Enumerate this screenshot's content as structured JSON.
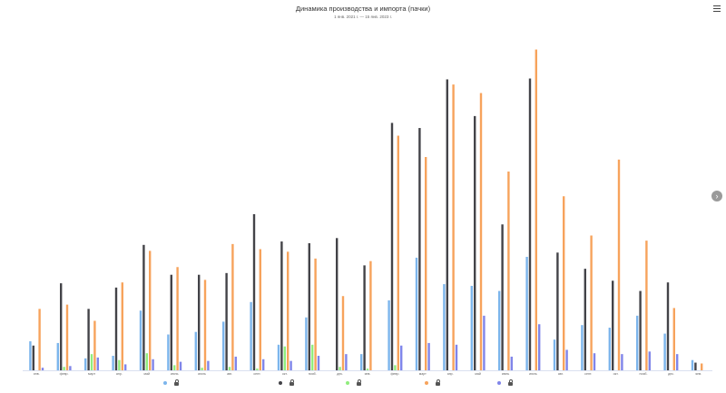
{
  "chart_data": {
    "type": "bar",
    "title": "Динамика производства и импорта (пачки)",
    "subtitle": "1 янв. 2021 г. — 15 янв. 2023 г.",
    "categories": [
      "янв.",
      "февр.",
      "март",
      "апр.",
      "май",
      "июнь",
      "июль",
      "авг.",
      "сент.",
      "окт.",
      "нояб.",
      "дек.",
      "янв.",
      "февр.",
      "март",
      "апр.",
      "май",
      "июнь",
      "июль",
      "авг.",
      "сент.",
      "окт.",
      "нояб.",
      "дек.",
      "янв."
    ],
    "series": [
      {
        "name": "",
        "color": "#7cb5ec",
        "values": [
          34,
          32,
          14,
          17,
          70,
          42,
          45,
          57,
          80,
          30,
          62,
          0,
          19,
          82,
          132,
          101,
          99,
          93,
          133,
          36,
          53,
          50,
          64,
          43,
          12
        ]
      },
      {
        "name": "",
        "color": "#434348",
        "values": [
          29,
          102,
          72,
          97,
          147,
          112,
          112,
          114,
          183,
          151,
          149,
          155,
          123,
          290,
          284,
          341,
          298,
          171,
          342,
          138,
          119,
          105,
          93,
          103,
          9
        ]
      },
      {
        "name": "",
        "color": "#90ed7d",
        "values": [
          0,
          4,
          19,
          12,
          20,
          6,
          3,
          4,
          2,
          28,
          30,
          4,
          2,
          6,
          0,
          0,
          0,
          0,
          0,
          0,
          0,
          0,
          0,
          0,
          0
        ]
      },
      {
        "name": "",
        "color": "#f7a35c",
        "values": [
          72,
          77,
          58,
          103,
          140,
          121,
          106,
          148,
          142,
          139,
          131,
          87,
          128,
          275,
          250,
          335,
          325,
          233,
          376,
          204,
          158,
          247,
          152,
          73,
          8
        ]
      },
      {
        "name": "",
        "color": "#8085e9",
        "values": [
          3,
          5,
          15,
          7,
          13,
          10,
          11,
          16,
          13,
          11,
          17,
          19,
          0,
          29,
          32,
          30,
          64,
          16,
          54,
          24,
          20,
          19,
          22,
          19,
          0
        ]
      }
    ],
    "ylim": [
      0,
      400
    ],
    "xlabel": "",
    "ylabel": "",
    "grid": false,
    "legend": "bottom"
  }
}
